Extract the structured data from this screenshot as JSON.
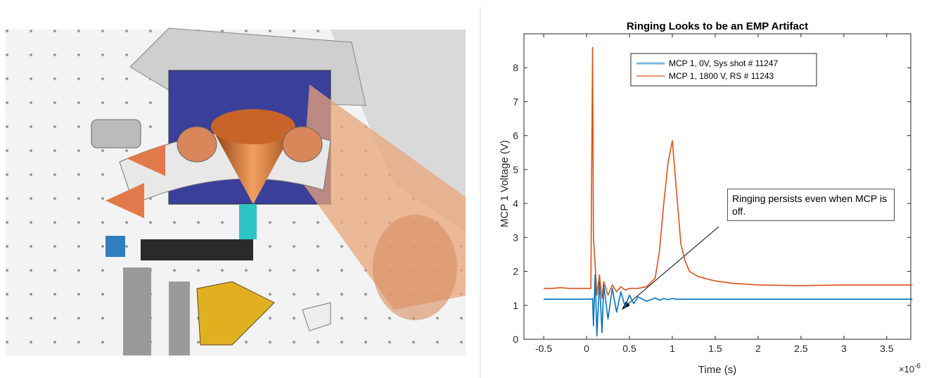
{
  "chart_data": {
    "type": "line",
    "title": "Ringing Looks to be an EMP Artifact",
    "x_label": "Time (s)",
    "y_label": "MCP 1 Voltage (V)",
    "x_exponent": {
      "base": "×10",
      "exponent": "-6"
    },
    "annotation": "Ringing persists even when MCP is off.",
    "legend": "top",
    "grid": false,
    "xlim": [
      -0.73,
      3.78
    ],
    "ylim": [
      0,
      9
    ],
    "xticks": [
      -0.5,
      0,
      0.5,
      1,
      1.5,
      2,
      2.5,
      3,
      3.5
    ],
    "yticks": [
      0,
      1,
      2,
      3,
      4,
      5,
      6,
      7,
      8
    ],
    "x": [
      -0.5,
      -0.4,
      -0.3,
      -0.2,
      -0.1,
      0,
      0.05,
      0.07,
      0.08,
      0.1,
      0.12,
      0.15,
      0.18,
      0.2,
      0.25,
      0.3,
      0.35,
      0.4,
      0.45,
      0.5,
      0.55,
      0.6,
      0.7,
      0.8,
      0.85,
      0.9,
      0.95,
      1.0,
      1.05,
      1.1,
      1.15,
      1.2,
      1.3,
      1.4,
      1.5,
      1.7,
      2.0,
      2.5,
      3.0,
      3.5,
      3.8
    ],
    "series": [
      {
        "name": "MCP 1, 0V, Sys shot # 11247",
        "color": "#0072bd",
        "values": [
          1.18,
          1.18,
          1.18,
          1.18,
          1.18,
          1.18,
          1.18,
          1.2,
          0.4,
          1.9,
          0.1,
          1.7,
          0.2,
          1.6,
          0.6,
          1.5,
          0.8,
          1.4,
          0.95,
          1.3,
          1.05,
          1.25,
          1.12,
          1.22,
          1.15,
          1.2,
          1.17,
          1.2,
          1.18,
          1.18,
          1.18,
          1.18,
          1.18,
          1.18,
          1.18,
          1.18,
          1.18,
          1.18,
          1.18,
          1.18,
          1.18
        ]
      },
      {
        "name": "MCP 1, 1800 V, RS # 11243",
        "color": "#d95319",
        "values": [
          1.5,
          1.5,
          1.52,
          1.5,
          1.5,
          1.5,
          1.5,
          8.6,
          3.0,
          2.2,
          1.3,
          1.9,
          1.2,
          1.7,
          1.3,
          1.6,
          1.4,
          1.55,
          1.45,
          1.5,
          1.5,
          1.5,
          1.55,
          1.8,
          2.6,
          4.0,
          5.2,
          5.85,
          4.3,
          2.8,
          2.3,
          2.0,
          1.85,
          1.78,
          1.72,
          1.65,
          1.6,
          1.58,
          1.6,
          1.6,
          1.6
        ]
      }
    ]
  }
}
